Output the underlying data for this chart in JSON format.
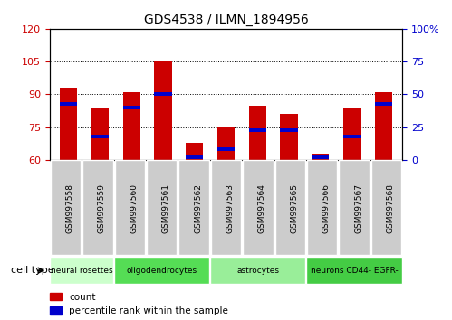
{
  "title": "GDS4538 / ILMN_1894956",
  "samples": [
    "GSM997558",
    "GSM997559",
    "GSM997560",
    "GSM997561",
    "GSM997562",
    "GSM997563",
    "GSM997564",
    "GSM997565",
    "GSM997566",
    "GSM997567",
    "GSM997568"
  ],
  "counts": [
    93,
    84,
    91,
    105,
    68,
    75,
    85,
    81,
    63,
    84,
    91
  ],
  "percentile_ranks": [
    43,
    18,
    40,
    50,
    2,
    8,
    23,
    23,
    2,
    18,
    43
  ],
  "ylim_left": [
    60,
    120
  ],
  "ylim_right": [
    0,
    100
  ],
  "yticks_left": [
    60,
    75,
    90,
    105,
    120
  ],
  "yticks_right": [
    0,
    25,
    50,
    75,
    100
  ],
  "ytick_labels_right": [
    "0",
    "25",
    "50",
    "75",
    "100%"
  ],
  "cell_types": [
    {
      "label": "neural rosettes",
      "samples": [
        0,
        1
      ],
      "color": "#ccffcc"
    },
    {
      "label": "oligodendrocytes",
      "samples": [
        2,
        3,
        4
      ],
      "color": "#55dd55"
    },
    {
      "label": "astrocytes",
      "samples": [
        5,
        6,
        7
      ],
      "color": "#99ee99"
    },
    {
      "label": "neurons CD44- EGFR-",
      "samples": [
        8,
        9,
        10
      ],
      "color": "#44cc44"
    }
  ],
  "bar_color": "#cc0000",
  "marker_color": "#0000cc",
  "bar_width": 0.55,
  "background_color": "#ffffff",
  "tick_box_color": "#cccccc",
  "cell_type_label": "cell type",
  "legend_count": "count",
  "legend_percentile": "percentile rank within the sample"
}
